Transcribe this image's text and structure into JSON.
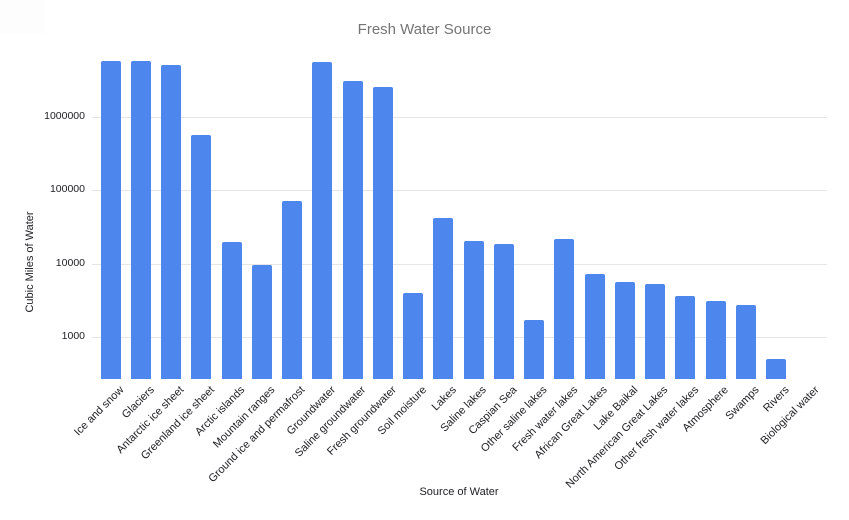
{
  "chart_data": {
    "type": "bar",
    "title": "Fresh Water Source",
    "xlabel": "Source of Water",
    "ylabel": "Cubic Miles of Water",
    "y_scale": "log",
    "y_min": 269,
    "y_max": 7000000,
    "grid": true,
    "legend": "none",
    "y_ticks": [
      {
        "value": 1000,
        "label": "1000"
      },
      {
        "value": 10000,
        "label": "10000"
      },
      {
        "value": 100000,
        "label": "100000"
      },
      {
        "value": 1000000,
        "label": "1000000"
      }
    ],
    "categories": [
      "Ice and snow",
      "Glaciers",
      "Antarctic ice sheet",
      "Greenland ice sheet",
      "Arctic islands",
      "Mountain ranges",
      "Ground ice and permafrost",
      "Groundwater",
      "Saline groundwater",
      "Fresh groundwater",
      "Soil moisture",
      "Lakes",
      "Saline lakes",
      "Caspian Sea",
      "Other saline lakes",
      "Fresh water lakes",
      "African Great Lakes",
      "Lake Baikal",
      "North American Great Lakes",
      "Other fresh water lakes",
      "Atmosphere",
      "Swamps",
      "Rivers",
      "Biological water"
    ],
    "values": [
      5845000,
      5773000,
      5183000,
      560000,
      20000,
      9700,
      71970,
      5614000,
      3088000,
      2526000,
      3959,
      42320,
      20490,
      18800,
      1700,
      21830,
      7210,
      5662,
      5300,
      3650,
      3095,
      2752,
      509,
      269
    ]
  },
  "colors": {
    "bar": "#4d86ec",
    "title_text": "#757575",
    "axis_text": "#202124",
    "gridline": "#e6e6e6",
    "background": "#ffffff"
  }
}
